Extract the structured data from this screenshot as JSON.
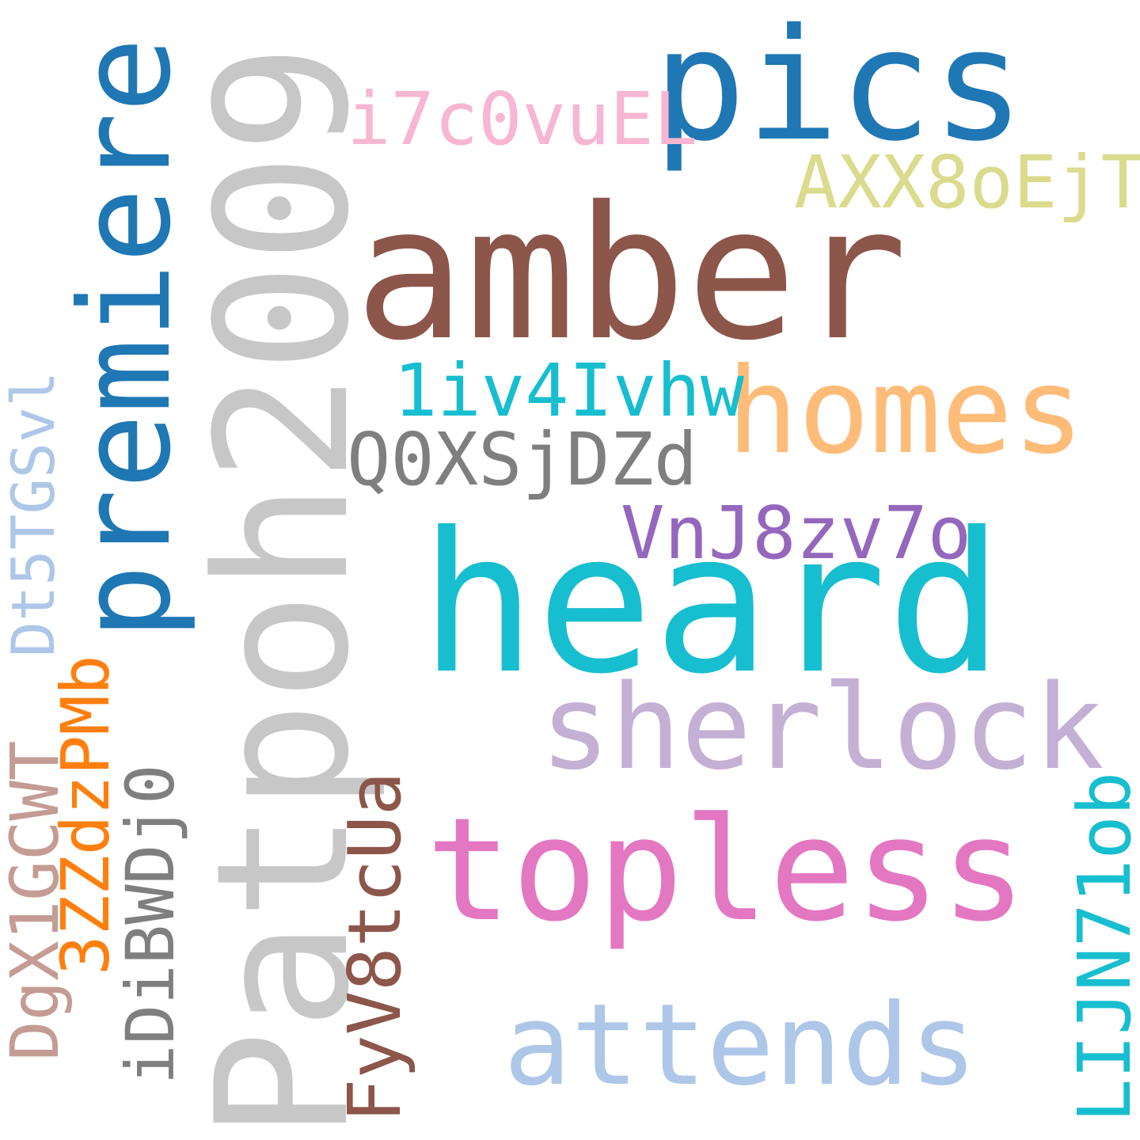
{
  "words": {
    "patpoh2009": {
      "text": "Patpoh2009",
      "color": "#c7c7c7",
      "orientation": "vertical"
    },
    "heard": {
      "text": "heard",
      "color": "#17becf",
      "orientation": "horizontal"
    },
    "amber": {
      "text": "amber",
      "color": "#8c564b",
      "orientation": "horizontal"
    },
    "pics": {
      "text": "pics",
      "color": "#1f77b4",
      "orientation": "horizontal"
    },
    "topless": {
      "text": "topless",
      "color": "#e377c2",
      "orientation": "horizontal"
    },
    "premiere": {
      "text": "premiere",
      "color": "#1f77b4",
      "orientation": "vertical"
    },
    "sherlock": {
      "text": "sherlock",
      "color": "#c5b0d5",
      "orientation": "horizontal"
    },
    "homes": {
      "text": "homes",
      "color": "#ffbb78",
      "orientation": "horizontal"
    },
    "attends": {
      "text": "attends",
      "color": "#aec7e8",
      "orientation": "horizontal"
    },
    "i7c0vuel": {
      "text": "i7c0vuEL",
      "color": "#f7b6d2",
      "orientation": "horizontal"
    },
    "axx8oejt": {
      "text": "AXX8oEjT",
      "color": "#dbdb8d",
      "orientation": "horizontal"
    },
    "1iv4ivhw": {
      "text": "1iv4Ivhw",
      "color": "#17becf",
      "orientation": "horizontal"
    },
    "q0xsjdzd": {
      "text": "Q0XSjDZd",
      "color": "#7f7f7f",
      "orientation": "horizontal"
    },
    "vnj8zv7o": {
      "text": "VnJ8zv7o",
      "color": "#9467bd",
      "orientation": "horizontal"
    },
    "dt5tgsvl": {
      "text": "Dt5TGSvl",
      "color": "#aec7e8",
      "orientation": "vertical"
    },
    "dgx1gcwt": {
      "text": "DgX1GCWT",
      "color": "#c49c94",
      "orientation": "vertical"
    },
    "3zzdzpmb": {
      "text": "3ZZdzPMb",
      "color": "#ff7f0e",
      "orientation": "vertical"
    },
    "idibwdj0": {
      "text": "iDiBWDj0",
      "color": "#7f7f7f",
      "orientation": "vertical"
    },
    "fyv8tcua": {
      "text": "FyV8tcUa",
      "color": "#8c564b",
      "orientation": "vertical"
    },
    "lijn71ob": {
      "text": "LIJN71ob",
      "color": "#17becf",
      "orientation": "vertical"
    }
  }
}
